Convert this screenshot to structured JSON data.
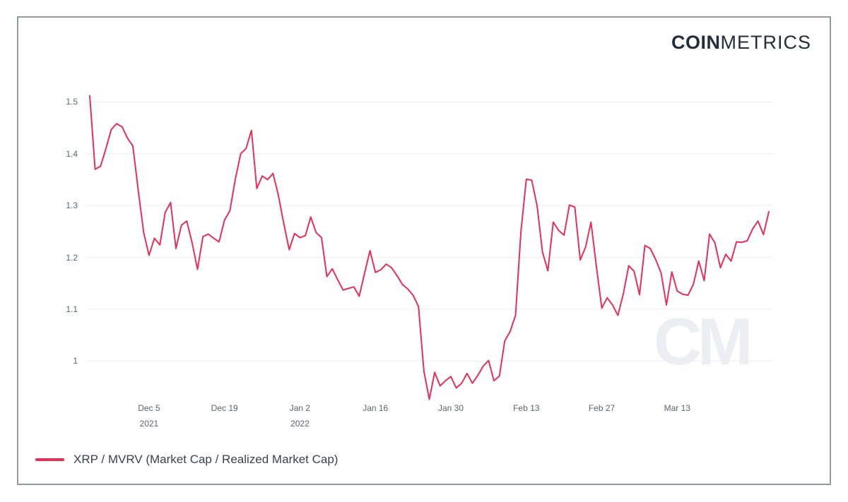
{
  "logo": {
    "bold": "COIN",
    "light": "METRICS"
  },
  "watermark": {
    "text": "CM"
  },
  "legend": {
    "label": "XRP / MVRV (Market Cap / Realized Market Cap)"
  },
  "colors": {
    "series_line": "#e92e58",
    "grid": "#ededed",
    "axis_text": "#5d646e",
    "legend_text": "#3a4154",
    "logo_text": "#262c40",
    "watermark": "#eceef4",
    "frame_border": "#94989f"
  },
  "chart_data": {
    "type": "line",
    "title": "",
    "xlabel": "",
    "ylabel": "",
    "frequency": "daily",
    "x_start_date": "2021-11-24",
    "x_end_date": "2022-03-30",
    "ylim": [
      0.92,
      1.54
    ],
    "grid": "horizontal-only",
    "legend_position": "bottom-left",
    "y_ticks": [
      {
        "value": 1.0,
        "label": "1"
      },
      {
        "value": 1.1,
        "label": "1.1"
      },
      {
        "value": 1.2,
        "label": "1.2"
      },
      {
        "value": 1.3,
        "label": "1.3"
      },
      {
        "value": 1.4,
        "label": "1.4"
      },
      {
        "value": 1.5,
        "label": "1.5"
      }
    ],
    "x_ticks": [
      {
        "index": 11,
        "label": "Dec 5",
        "sublabel": "2021"
      },
      {
        "index": 25,
        "label": "Dec 19"
      },
      {
        "index": 39,
        "label": "Jan 2",
        "sublabel": "2022"
      },
      {
        "index": 53,
        "label": "Jan 16"
      },
      {
        "index": 67,
        "label": "Jan 30"
      },
      {
        "index": 81,
        "label": "Feb 13"
      },
      {
        "index": 95,
        "label": "Feb 27"
      },
      {
        "index": 109,
        "label": "Mar 13"
      }
    ],
    "series": [
      {
        "name": "XRP / MVRV (Market Cap / Realized Market Cap)",
        "color": "#e92e58",
        "values": [
          1.512,
          1.37,
          1.376,
          1.41,
          1.447,
          1.458,
          1.452,
          1.43,
          1.415,
          1.33,
          1.248,
          1.204,
          1.237,
          1.224,
          1.287,
          1.306,
          1.217,
          1.262,
          1.27,
          1.228,
          1.177,
          1.24,
          1.245,
          1.237,
          1.23,
          1.272,
          1.29,
          1.35,
          1.4,
          1.41,
          1.445,
          1.333,
          1.357,
          1.35,
          1.362,
          1.32,
          1.265,
          1.215,
          1.246,
          1.238,
          1.242,
          1.278,
          1.248,
          1.238,
          1.163,
          1.178,
          1.157,
          1.137,
          1.14,
          1.143,
          1.125,
          1.17,
          1.213,
          1.171,
          1.176,
          1.187,
          1.18,
          1.165,
          1.148,
          1.139,
          1.127,
          1.105,
          0.98,
          0.926,
          0.978,
          0.952,
          0.962,
          0.97,
          0.948,
          0.957,
          0.976,
          0.957,
          0.972,
          0.99,
          1.001,
          0.962,
          0.971,
          1.039,
          1.057,
          1.088,
          1.25,
          1.351,
          1.349,
          1.3,
          1.21,
          1.174,
          1.268,
          1.252,
          1.243,
          1.301,
          1.297,
          1.195,
          1.22,
          1.268,
          1.183,
          1.102,
          1.122,
          1.108,
          1.088,
          1.13,
          1.184,
          1.173,
          1.128,
          1.223,
          1.217,
          1.196,
          1.17,
          1.108,
          1.172,
          1.135,
          1.129,
          1.127,
          1.148,
          1.193,
          1.155,
          1.245,
          1.228,
          1.18,
          1.206,
          1.193,
          1.23,
          1.229,
          1.232,
          1.255,
          1.27,
          1.244,
          1.288
        ]
      }
    ]
  }
}
